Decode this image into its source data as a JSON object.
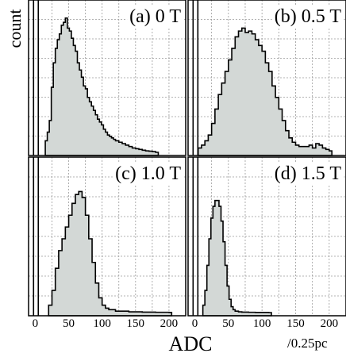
{
  "figure": {
    "ylabel": "count",
    "xlabel": "ADC",
    "unit_label": "/0.25pc"
  },
  "chart_data": [
    {
      "type": "histogram",
      "panel_label": "(a) 0 T",
      "xlim": [
        -10,
        225
      ],
      "x_ticks": [
        0,
        50,
        100,
        150,
        200
      ],
      "grid": true,
      "pedestal_x": 1,
      "x": [
        15,
        18,
        21,
        24,
        27,
        30,
        33,
        36,
        39,
        42,
        45,
        48,
        51,
        54,
        57,
        60,
        63,
        66,
        69,
        72,
        75,
        78,
        81,
        84,
        87,
        90,
        93,
        96,
        99,
        102,
        105,
        108,
        111,
        114,
        117,
        120,
        125,
        130,
        135,
        140,
        145,
        150,
        155,
        160,
        165,
        170,
        175,
        180
      ],
      "counts": [
        0.08,
        0.14,
        0.22,
        0.45,
        0.62,
        0.72,
        0.78,
        0.82,
        0.88,
        0.9,
        0.93,
        0.86,
        0.84,
        0.79,
        0.74,
        0.7,
        0.62,
        0.57,
        0.52,
        0.46,
        0.44,
        0.38,
        0.35,
        0.32,
        0.29,
        0.26,
        0.23,
        0.21,
        0.19,
        0.16,
        0.14,
        0.12,
        0.11,
        0.1,
        0.09,
        0.08,
        0.07,
        0.06,
        0.05,
        0.04,
        0.03,
        0.025,
        0.02,
        0.015,
        0.01,
        0.008,
        0.005,
        0.0
      ]
    },
    {
      "type": "histogram",
      "panel_label": "(b) 0.5 T",
      "xlim": [
        -10,
        225
      ],
      "x_ticks": [
        0,
        50,
        100,
        150,
        200
      ],
      "grid": true,
      "pedestal_x": 1,
      "x": [
        5,
        10,
        15,
        20,
        25,
        30,
        35,
        40,
        45,
        50,
        55,
        60,
        65,
        70,
        75,
        80,
        85,
        90,
        95,
        100,
        105,
        110,
        115,
        120,
        125,
        130,
        135,
        140,
        145,
        150,
        155,
        160,
        165,
        170,
        175,
        180,
        185,
        190,
        195,
        200
      ],
      "counts": [
        0.03,
        0.05,
        0.08,
        0.12,
        0.2,
        0.3,
        0.4,
        0.48,
        0.56,
        0.64,
        0.72,
        0.8,
        0.84,
        0.86,
        0.83,
        0.84,
        0.82,
        0.78,
        0.74,
        0.7,
        0.62,
        0.56,
        0.46,
        0.38,
        0.3,
        0.22,
        0.15,
        0.1,
        0.07,
        0.05,
        0.04,
        0.04,
        0.04,
        0.05,
        0.03,
        0.06,
        0.05,
        0.03,
        0.02,
        0.01
      ]
    },
    {
      "type": "histogram",
      "panel_label": "(c) 1.0 T",
      "xlim": [
        -10,
        225
      ],
      "x_ticks": [
        0,
        50,
        100,
        150,
        200
      ],
      "grid": true,
      "pedestal_x": 1,
      "x": [
        20,
        25,
        30,
        35,
        40,
        45,
        50,
        55,
        60,
        65,
        70,
        75,
        80,
        85,
        90,
        95,
        100,
        105,
        110,
        120,
        130,
        140,
        150,
        160,
        170,
        180,
        190,
        200
      ],
      "counts": [
        0.05,
        0.15,
        0.3,
        0.42,
        0.5,
        0.58,
        0.66,
        0.74,
        0.8,
        0.82,
        0.78,
        0.66,
        0.5,
        0.34,
        0.2,
        0.1,
        0.05,
        0.03,
        0.02,
        0.01,
        0.01,
        0.005,
        0.005,
        0.003,
        0.003,
        0.002,
        0.002,
        0.001
      ]
    },
    {
      "type": "histogram",
      "panel_label": "(d) 1.5 T",
      "xlim": [
        -10,
        225
      ],
      "x_ticks": [
        0,
        50,
        100,
        150,
        200
      ],
      "grid": true,
      "pedestal_x": 1,
      "x": [
        12,
        15,
        18,
        21,
        24,
        27,
        30,
        33,
        36,
        39,
        42,
        45,
        48,
        51,
        54,
        57,
        60,
        65,
        70,
        80,
        90,
        100,
        110
      ],
      "counts": [
        0.05,
        0.15,
        0.32,
        0.5,
        0.64,
        0.72,
        0.76,
        0.76,
        0.72,
        0.62,
        0.48,
        0.32,
        0.18,
        0.09,
        0.04,
        0.02,
        0.01,
        0.005,
        0.003,
        0.002,
        0.001,
        0.001,
        0.0
      ]
    }
  ]
}
